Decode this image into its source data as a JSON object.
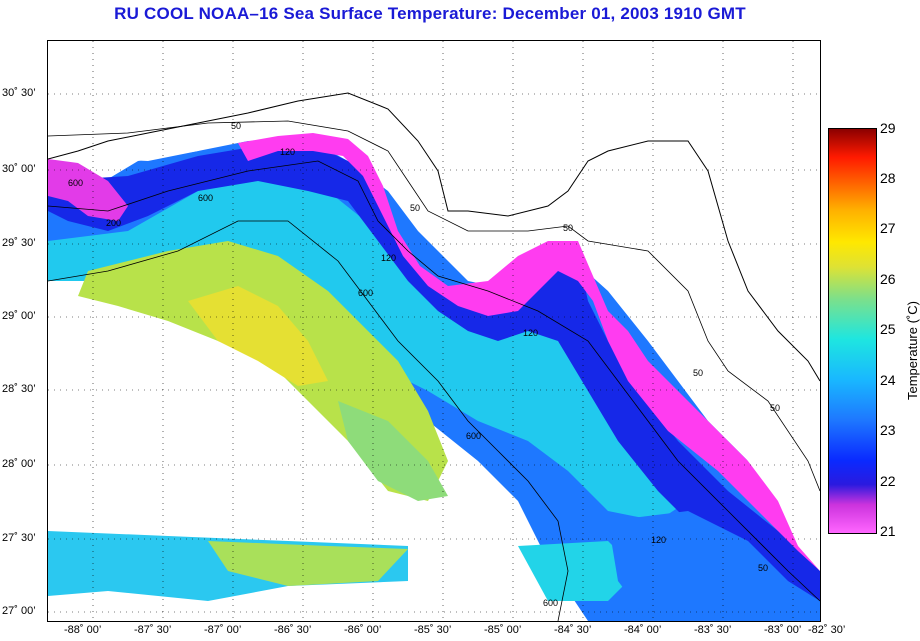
{
  "title": "RU COOL  NOAA–16  Sea Surface Temperature:  December 01, 2003 1910 GMT",
  "lat_labels": [
    "30˚ 30’",
    "30˚ 00’",
    "29˚ 30’",
    "29˚ 00’",
    "28˚ 30’",
    "28˚ 00’",
    "27˚ 30’",
    "27˚ 00’"
  ],
  "lon_labels": [
    "-88˚ 00’",
    "-87˚ 30’",
    "-87˚ 00’",
    "-86˚ 30’",
    "-86˚ 00’",
    "-85˚ 30’",
    "-85˚ 00’",
    "-84˚ 30’",
    "-84˚ 00’",
    "-83˚ 30’",
    "-83˚ 00’",
    "-82˚ 30’"
  ],
  "colorbar": {
    "title": "Temperature (˚C)",
    "ticks": [
      "29",
      "28",
      "27",
      "26",
      "25",
      "24",
      "23",
      "22",
      "21"
    ]
  },
  "contour_labels": [
    "50",
    "50",
    "50",
    "50",
    "50",
    "50",
    "120",
    "120",
    "120",
    "120",
    "600",
    "600",
    "600",
    "600",
    "600",
    "200"
  ],
  "colors": {
    "title": "#1a1ad6",
    "land": "#ffffff",
    "coast": "#000000"
  }
}
